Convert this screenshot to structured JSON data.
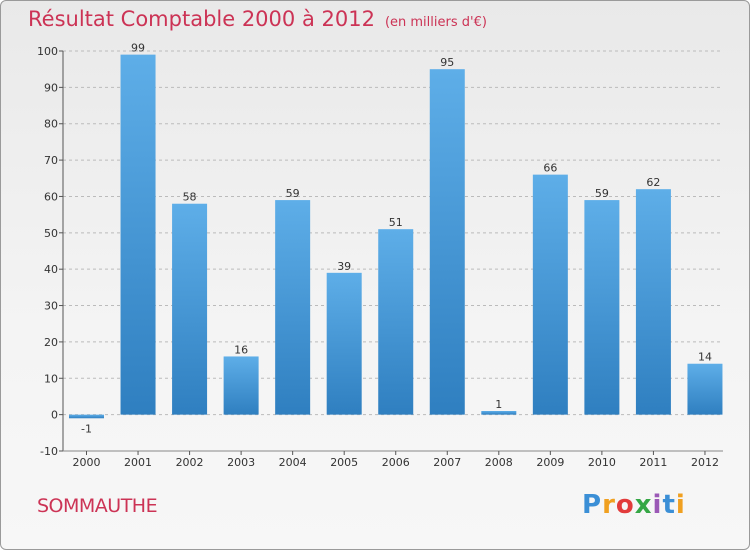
{
  "header": {
    "title": "Résultat Comptable 2000 à 2012",
    "subtitle": "(en milliers d'€)"
  },
  "footer": {
    "commune": "SOMMAUTHE",
    "logo": "Proxiti"
  },
  "colors": {
    "bar_top": "#5eaee8",
    "bar_bottom": "#2f7fc0",
    "title": "#cc3355",
    "grid": "#bbbbbb"
  },
  "chart_data": {
    "type": "bar",
    "title": "Résultat Comptable 2000 à 2012",
    "unit": "(en milliers d'€)",
    "categories": [
      "2000",
      "2001",
      "2002",
      "2003",
      "2004",
      "2005",
      "2006",
      "2007",
      "2008",
      "2009",
      "2010",
      "2011",
      "2012"
    ],
    "values": [
      -1,
      99,
      58,
      16,
      59,
      39,
      51,
      95,
      1,
      66,
      59,
      62,
      14
    ],
    "value_labels": [
      "-1",
      "99",
      "58",
      "16",
      "59",
      "39",
      "51",
      "95",
      "1",
      "66",
      "59",
      "62",
      "14"
    ],
    "ylim": [
      -10,
      100
    ],
    "yticks": [
      -10,
      0,
      10,
      20,
      30,
      40,
      50,
      60,
      70,
      80,
      90,
      100
    ],
    "grid": "horizontal dashed",
    "xlabel": "",
    "ylabel": ""
  }
}
